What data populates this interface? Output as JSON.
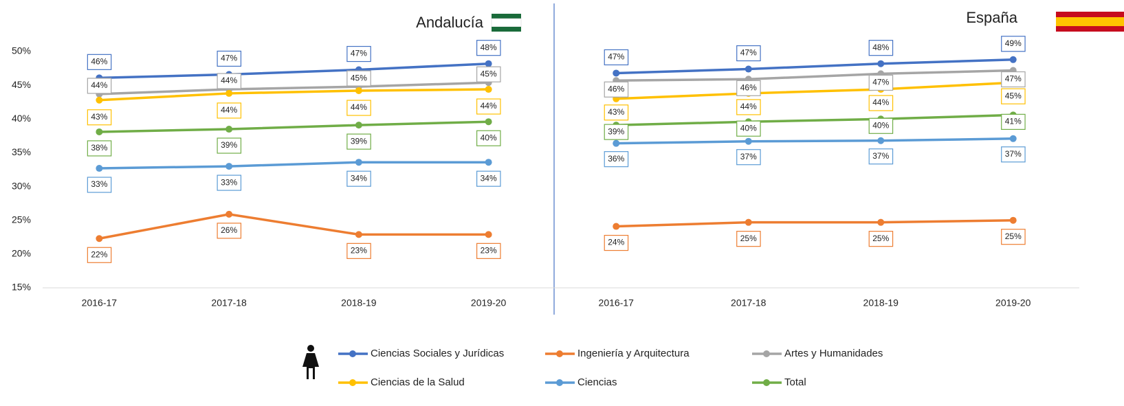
{
  "chart_data": [
    {
      "type": "line",
      "title": "Andalucía",
      "categories": [
        "2016-17",
        "2017-18",
        "2018-19",
        "2019-20"
      ],
      "ylim": [
        15,
        50
      ],
      "yticks": [
        {
          "value": 15,
          "label": "15%"
        },
        {
          "value": 20,
          "label": "20%"
        },
        {
          "value": 25,
          "label": "25%"
        },
        {
          "value": 30,
          "label": "30%"
        },
        {
          "value": 35,
          "label": "35%"
        },
        {
          "value": 40,
          "label": "40%"
        },
        {
          "value": 45,
          "label": "45%"
        },
        {
          "value": 50,
          "label": "50%"
        }
      ],
      "series": [
        {
          "name": "Ciencias Sociales y Jurídicas",
          "color": "#4472c4",
          "values": [
            46.1,
            46.6,
            47.3,
            48.2
          ],
          "value_labels": [
            "46%",
            "47%",
            "47%",
            "48%"
          ]
        },
        {
          "name": "Ingeniería y Arquitectura",
          "color": "#ed7d31",
          "values": [
            22.3,
            25.9,
            22.9,
            22.9
          ],
          "value_labels": [
            "22%",
            "26%",
            "23%",
            "23%"
          ]
        },
        {
          "name": "Artes y Humanidades",
          "color": "#a5a5a5",
          "values": [
            43.7,
            44.4,
            44.8,
            45.4
          ],
          "value_labels": [
            "44%",
            "44%",
            "45%",
            "45%"
          ]
        },
        {
          "name": "Ciencias de la Salud",
          "color": "#ffc000",
          "values": [
            42.8,
            43.8,
            44.2,
            44.4
          ],
          "value_labels": [
            "43%",
            "44%",
            "44%",
            "44%"
          ]
        },
        {
          "name": "Ciencias",
          "color": "#5b9bd5",
          "values": [
            32.7,
            33.0,
            33.6,
            33.6
          ],
          "value_labels": [
            "33%",
            "33%",
            "34%",
            "34%"
          ]
        },
        {
          "name": "Total",
          "color": "#70ad47",
          "values": [
            38.1,
            38.5,
            39.1,
            39.6
          ],
          "value_labels": [
            "38%",
            "39%",
            "39%",
            "40%"
          ]
        }
      ]
    },
    {
      "type": "line",
      "title": "España",
      "categories": [
        "2016-17",
        "2017-18",
        "2018-19",
        "2019-20"
      ],
      "ylim": [
        15,
        50
      ],
      "series": [
        {
          "color": "#4472c4",
          "values": [
            46.8,
            47.4,
            48.2,
            48.8
          ],
          "value_labels": [
            "47%",
            "47%",
            "48%",
            "49%"
          ]
        },
        {
          "color": "#ed7d31",
          "values": [
            24.1,
            24.7,
            24.7,
            25.0
          ],
          "value_labels": [
            "24%",
            "25%",
            "25%",
            "25%"
          ]
        },
        {
          "color": "#a5a5a5",
          "values": [
            45.7,
            45.9,
            46.7,
            47.2
          ],
          "value_labels": [
            "46%",
            "46%",
            "47%",
            "47%"
          ]
        },
        {
          "color": "#ffc000",
          "values": [
            43.0,
            43.8,
            44.4,
            45.4
          ],
          "value_labels": [
            "43%",
            "44%",
            "44%",
            "45%"
          ]
        },
        {
          "color": "#5b9bd5",
          "values": [
            36.4,
            36.7,
            36.8,
            37.1
          ],
          "value_labels": [
            "36%",
            "37%",
            "37%",
            "37%"
          ]
        },
        {
          "color": "#70ad47",
          "values": [
            39.1,
            39.6,
            40.0,
            40.6
          ],
          "value_labels": [
            "39%",
            "40%",
            "40%",
            "41%"
          ]
        }
      ]
    }
  ]
}
